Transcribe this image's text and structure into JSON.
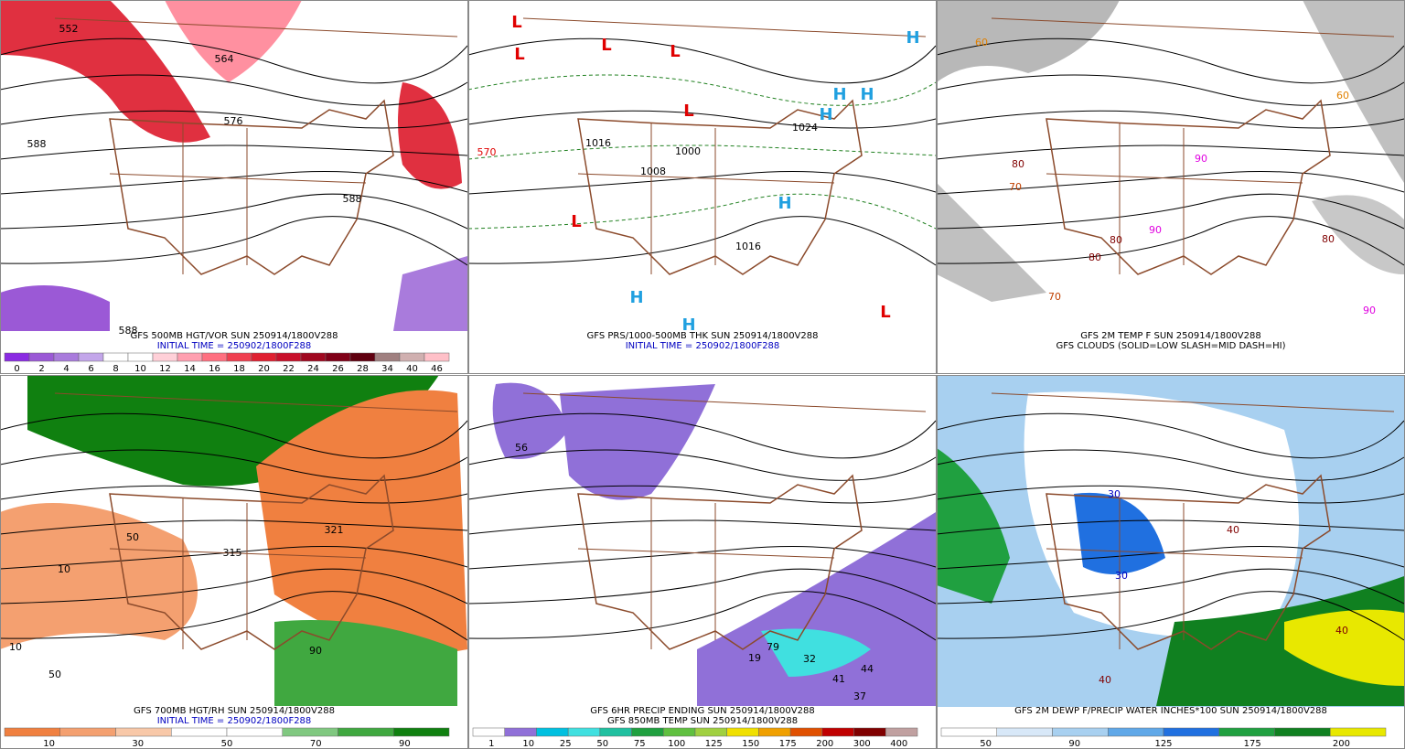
{
  "panels": [
    {
      "lines": [
        {
          "text": "GFS 500MB HGT/VOR SUN 250914/1800V288",
          "color": "#000000"
        },
        {
          "text": "INITIAL TIME = 250902/1800F288",
          "color": "#0000c0"
        }
      ],
      "colorbar": {
        "colors": [
          "#8a2be2",
          "#9b59d6",
          "#a97bdc",
          "#c3a6ea",
          "#ffffff",
          "#ffffff",
          "#ffd0d8",
          "#ffa0b0",
          "#ff7080",
          "#f04050",
          "#e02030",
          "#c8102a",
          "#a00820",
          "#800018",
          "#600010",
          "#a08080",
          "#d0b0b0",
          "#ffc0c8"
        ],
        "labels": [
          "0",
          "2",
          "4",
          "6",
          "8",
          "10",
          "12",
          "14",
          "16",
          "18",
          "20",
          "22",
          "24",
          "26",
          "28",
          "34",
          "40",
          "46"
        ]
      },
      "map_labels": [
        {
          "text": "552",
          "color": "#000000"
        },
        {
          "text": "564",
          "color": "#000000"
        },
        {
          "text": "576",
          "color": "#000000"
        },
        {
          "text": "588",
          "color": "#000000"
        },
        {
          "text": "588",
          "color": "#000000"
        },
        {
          "text": "588",
          "color": "#000000"
        }
      ]
    },
    {
      "lines": [
        {
          "text": "GFS PRS/1000-500MB THK SUN 250914/1800V288",
          "color": "#000000"
        },
        {
          "text": "INITIAL TIME = 250902/1800F288",
          "color": "#0000c0"
        }
      ],
      "map_labels": [
        {
          "text": "L",
          "color": "#e00000"
        },
        {
          "text": "L",
          "color": "#e00000"
        },
        {
          "text": "L",
          "color": "#e00000"
        },
        {
          "text": "L",
          "color": "#e00000"
        },
        {
          "text": "L",
          "color": "#e00000"
        },
        {
          "text": "L",
          "color": "#e00000"
        },
        {
          "text": "L",
          "color": "#e00000"
        },
        {
          "text": "H",
          "color": "#20a0e0"
        },
        {
          "text": "H",
          "color": "#20a0e0"
        },
        {
          "text": "H",
          "color": "#20a0e0"
        },
        {
          "text": "H",
          "color": "#20a0e0"
        },
        {
          "text": "H",
          "color": "#20a0e0"
        },
        {
          "text": "H",
          "color": "#20a0e0"
        },
        {
          "text": "H",
          "color": "#20a0e0"
        },
        {
          "text": "1008",
          "color": "#000000"
        },
        {
          "text": "1016",
          "color": "#000000"
        },
        {
          "text": "1000",
          "color": "#000000"
        },
        {
          "text": "1024",
          "color": "#000000"
        },
        {
          "text": "1016",
          "color": "#000000"
        },
        {
          "text": "570",
          "color": "#e00000"
        }
      ]
    },
    {
      "lines": [
        {
          "text": "GFS 2M TEMP F SUN 250914/1800V288",
          "color": "#000000"
        },
        {
          "text": "GFS CLOUDS (SOLID=LOW SLASH=MID DASH=HI)",
          "color": "#000000"
        }
      ],
      "map_labels": [
        {
          "text": "60",
          "color": "#e08000"
        },
        {
          "text": "70",
          "color": "#c04000"
        },
        {
          "text": "80",
          "color": "#800000"
        },
        {
          "text": "90",
          "color": "#e000e0"
        },
        {
          "text": "80",
          "color": "#800000"
        },
        {
          "text": "90",
          "color": "#e000e0"
        },
        {
          "text": "80",
          "color": "#800000"
        },
        {
          "text": "70",
          "color": "#c04000"
        },
        {
          "text": "60",
          "color": "#e08000"
        },
        {
          "text": "80",
          "color": "#800000"
        },
        {
          "text": "90",
          "color": "#e000e0"
        }
      ]
    },
    {
      "lines": [
        {
          "text": "GFS 700MB HGT/RH SUN 250914/1800V288",
          "color": "#000000"
        },
        {
          "text": "INITIAL TIME = 250902/1800F288",
          "color": "#0000c0"
        }
      ],
      "colorbar": {
        "colors": [
          "#f08040",
          "#f4a070",
          "#f8c8a8",
          "#ffffff",
          "#ffffff",
          "#80c880",
          "#40a840",
          "#108010"
        ],
        "labels": [
          "10",
          "30",
          "50",
          "70",
          "90"
        ]
      },
      "map_labels": [
        {
          "text": "10",
          "color": "#000000"
        },
        {
          "text": "50",
          "color": "#000000"
        },
        {
          "text": "321",
          "color": "#000000"
        },
        {
          "text": "315",
          "color": "#000000"
        },
        {
          "text": "90",
          "color": "#000000"
        },
        {
          "text": "10",
          "color": "#000000"
        },
        {
          "text": "50",
          "color": "#000000"
        }
      ]
    },
    {
      "lines": [
        {
          "text": "GFS 6HR PRECIP ENDING SUN 250914/1800V288",
          "color": "#000000"
        },
        {
          "text": "GFS 850MB TEMP SUN 250914/1800V288",
          "color": "#000000"
        }
      ],
      "colorbar": {
        "colors": [
          "#ffffff",
          "#9070d8",
          "#00c0e0",
          "#40e0e0",
          "#20c0a0",
          "#20a040",
          "#60c040",
          "#a0d040",
          "#f0e000",
          "#f0a000",
          "#e05000",
          "#c00000",
          "#800000",
          "#c0a0a0"
        ],
        "labels": [
          "1",
          "10",
          "25",
          "50",
          "75",
          "100",
          "125",
          "150",
          "175",
          "200",
          "300",
          "400"
        ]
      },
      "map_labels": [
        {
          "text": "56",
          "color": "#000000"
        },
        {
          "text": "79",
          "color": "#000000"
        },
        {
          "text": "32",
          "color": "#000000"
        },
        {
          "text": "19",
          "color": "#000000"
        },
        {
          "text": "41",
          "color": "#000000"
        },
        {
          "text": "37",
          "color": "#000000"
        },
        {
          "text": "44",
          "color": "#000000"
        }
      ]
    },
    {
      "lines": [
        {
          "text": "GFS 2M DEWP F/PRECIP WATER INCHES*100 SUN 250914/1800V288",
          "color": "#000000"
        }
      ],
      "colorbar": {
        "colors": [
          "#ffffff",
          "#d8e8f8",
          "#a8d0f0",
          "#60a8e8",
          "#2070e0",
          "#20a040",
          "#108020",
          "#e8e800"
        ],
        "labels": [
          "50",
          "90",
          "125",
          "175",
          "200"
        ]
      },
      "map_labels": [
        {
          "text": "30",
          "color": "#0000c0"
        },
        {
          "text": "30",
          "color": "#0000c0"
        },
        {
          "text": "40",
          "color": "#800000"
        },
        {
          "text": "40",
          "color": "#800000"
        },
        {
          "text": "40",
          "color": "#800000"
        }
      ]
    }
  ]
}
